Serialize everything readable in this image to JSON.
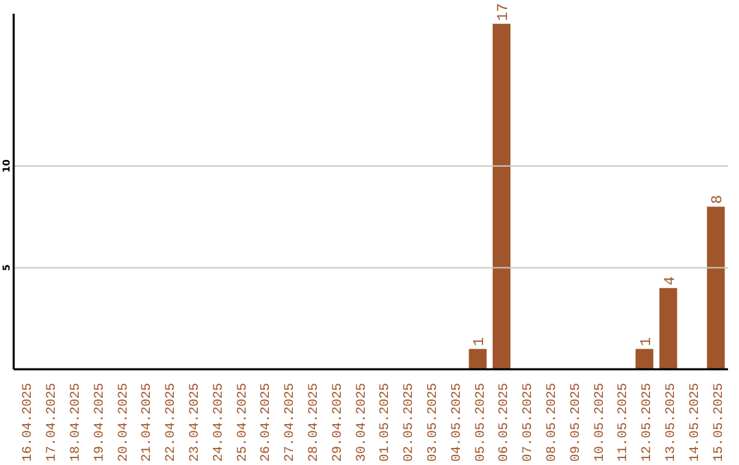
{
  "chart_data": {
    "type": "bar",
    "categories": [
      "16.04.2025",
      "17.04.2025",
      "18.04.2025",
      "19.04.2025",
      "20.04.2025",
      "21.04.2025",
      "22.04.2025",
      "23.04.2025",
      "24.04.2025",
      "25.04.2025",
      "26.04.2025",
      "27.04.2025",
      "28.04.2025",
      "29.04.2025",
      "30.04.2025",
      "01.05.2025",
      "02.05.2025",
      "03.05.2025",
      "04.05.2025",
      "05.05.2025",
      "06.05.2025",
      "07.05.2025",
      "08.05.2025",
      "09.05.2025",
      "10.05.2025",
      "11.05.2025",
      "12.05.2025",
      "13.05.2025",
      "14.05.2025",
      "15.05.2025"
    ],
    "values": [
      0,
      0,
      0,
      0,
      0,
      0,
      0,
      0,
      0,
      0,
      0,
      0,
      0,
      0,
      0,
      0,
      0,
      0,
      0,
      1,
      17,
      0,
      0,
      0,
      0,
      0,
      1,
      4,
      0,
      8
    ],
    "value_labels": [
      null,
      null,
      null,
      null,
      null,
      null,
      null,
      null,
      null,
      null,
      null,
      null,
      null,
      null,
      null,
      null,
      null,
      null,
      null,
      "1",
      "17",
      null,
      null,
      null,
      null,
      null,
      "1",
      "4",
      null,
      "8"
    ],
    "color": "#a0562a",
    "ylim": [
      0,
      17.5
    ],
    "yticks": [
      5,
      10
    ],
    "grid": "y"
  }
}
